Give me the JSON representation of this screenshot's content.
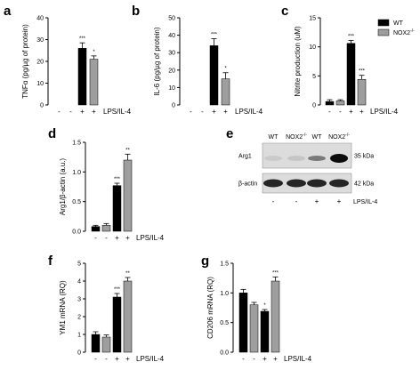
{
  "colors": {
    "wt": "#000000",
    "nox2": "#9e9e9e",
    "axis": "#000000"
  },
  "legend": {
    "items": [
      {
        "label": "WT",
        "color": "#000000"
      },
      {
        "label": "NOX2",
        "sup": "-/-",
        "color": "#9e9e9e"
      }
    ]
  },
  "chart_data": [
    {
      "panel": "a",
      "type": "bar",
      "ylabel": "TNFα (pg/µg of protein)",
      "ylim": [
        0,
        40
      ],
      "ticks": [
        0,
        10,
        20,
        30,
        40
      ],
      "conditions": [
        "-",
        "-",
        "+",
        "+"
      ],
      "treatment": "LPS/IL-4",
      "series_order": [
        "WT",
        "NOX2-/-",
        "WT",
        "NOX2-/-"
      ],
      "values": [
        0,
        0,
        26,
        21
      ],
      "errors": [
        0,
        0,
        2.5,
        1.5
      ],
      "stars": [
        "",
        "",
        "***",
        "*"
      ]
    },
    {
      "panel": "b",
      "type": "bar",
      "ylabel": "IL-6 (pg/µg of protein)",
      "ylim": [
        0,
        50
      ],
      "ticks": [
        0,
        10,
        20,
        30,
        40,
        50
      ],
      "conditions": [
        "-",
        "-",
        "+",
        "+"
      ],
      "treatment": "LPS/IL-4",
      "series_order": [
        "WT",
        "NOX2-/-",
        "WT",
        "NOX2-/-"
      ],
      "values": [
        0,
        0,
        34,
        15
      ],
      "errors": [
        0,
        0,
        4,
        3.5
      ],
      "stars": [
        "",
        "",
        "***",
        "*"
      ]
    },
    {
      "panel": "c",
      "type": "bar",
      "ylabel": "Nitrite production (uM)",
      "ylim": [
        0,
        15
      ],
      "ticks": [
        0,
        5,
        10,
        15
      ],
      "conditions": [
        "-",
        "-",
        "+",
        "+"
      ],
      "treatment": "LPS/IL-4",
      "series_order": [
        "WT",
        "NOX2-/-",
        "WT",
        "NOX2-/-"
      ],
      "values": [
        0.6,
        0.7,
        10.6,
        4.4
      ],
      "errors": [
        0.3,
        0.2,
        0.5,
        0.7
      ],
      "stars": [
        "",
        "",
        "***",
        "***"
      ]
    },
    {
      "panel": "d",
      "type": "bar",
      "ylabel": "Arg1/β-actin (a.u.)",
      "ylim": [
        0,
        1.5
      ],
      "ticks": [
        0.0,
        0.5,
        1.0,
        1.5
      ],
      "conditions": [
        "-",
        "-",
        "+",
        "+"
      ],
      "treatment": "LPS/IL-4",
      "series_order": [
        "WT",
        "NOX2-/-",
        "WT",
        "NOX2-/-"
      ],
      "values": [
        0.08,
        0.1,
        0.77,
        1.2
      ],
      "errors": [
        0.02,
        0.03,
        0.04,
        0.1
      ],
      "stars": [
        "",
        "",
        "***",
        "**"
      ]
    },
    {
      "panel": "f",
      "type": "bar",
      "ylabel": "YM1 mRNA (RQ)",
      "ylim": [
        0,
        5
      ],
      "ticks": [
        0,
        1,
        2,
        3,
        4,
        5
      ],
      "conditions": [
        "-",
        "-",
        "+",
        "+"
      ],
      "treatment": "LPS/IL-4",
      "series_order": [
        "WT",
        "NOX2-/-",
        "WT",
        "NOX2-/-"
      ],
      "values": [
        1.0,
        0.85,
        3.1,
        4.0
      ],
      "errors": [
        0.15,
        0.12,
        0.2,
        0.2
      ],
      "stars": [
        "",
        "",
        "***",
        "**"
      ]
    },
    {
      "panel": "g",
      "type": "bar",
      "ylabel": "CD206 mRNA (RQ)",
      "ylim": [
        0,
        1.5
      ],
      "ticks": [
        0.0,
        0.5,
        1.0,
        1.5
      ],
      "conditions": [
        "-",
        "-",
        "+",
        "+"
      ],
      "treatment": "LPS/IL-4",
      "series_order": [
        "WT",
        "NOX2-/-",
        "WT",
        "NOX2-/-"
      ],
      "values": [
        1.0,
        0.8,
        0.69,
        1.2
      ],
      "errors": [
        0.06,
        0.04,
        0.03,
        0.07
      ],
      "stars": [
        "",
        "",
        "*",
        "***"
      ]
    }
  ],
  "blot": {
    "panel": "e",
    "lanes": [
      {
        "label": "WT"
      },
      {
        "label": "NOX2",
        "sup": "-/-"
      },
      {
        "label": "WT"
      },
      {
        "label": "NOX2",
        "sup": "-/-"
      }
    ],
    "rows": [
      {
        "label": "Arg1",
        "size": "35 kDa"
      },
      {
        "label": "β-actin",
        "size": "42 kDa"
      }
    ],
    "conditions": [
      "-",
      "-",
      "+",
      "+"
    ],
    "treatment": "LPS/IL-4"
  }
}
